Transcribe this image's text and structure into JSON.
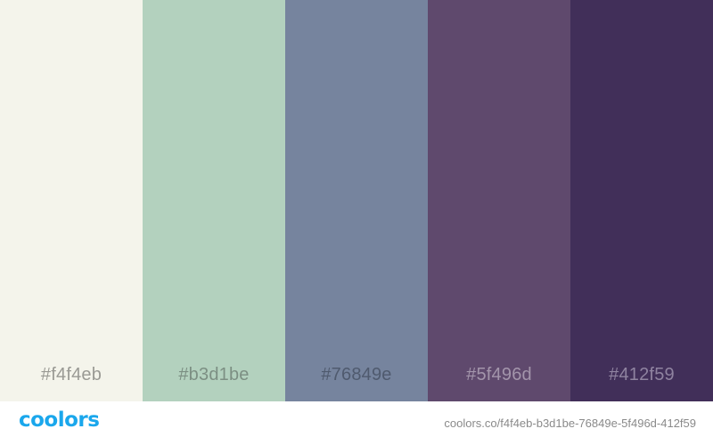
{
  "swatches": [
    {
      "label": "#f4f4eb",
      "color": "#f4f4eb",
      "label_color": "#9a9a94"
    },
    {
      "label": "#b3d1be",
      "color": "#b3d1be",
      "label_color": "#7c8f83"
    },
    {
      "label": "#76849e",
      "color": "#76849e",
      "label_color": "#4f5a6e"
    },
    {
      "label": "#5f496d",
      "color": "#5f496d",
      "label_color": "#a395ab"
    },
    {
      "label": "#412f59",
      "color": "#412f59",
      "label_color": "#8f83a0"
    }
  ],
  "footer": {
    "logo_text": "coolors",
    "logo_color": "#1aa7ec",
    "url": "coolors.co/f4f4eb-b3d1be-76849e-5f496d-412f59"
  }
}
